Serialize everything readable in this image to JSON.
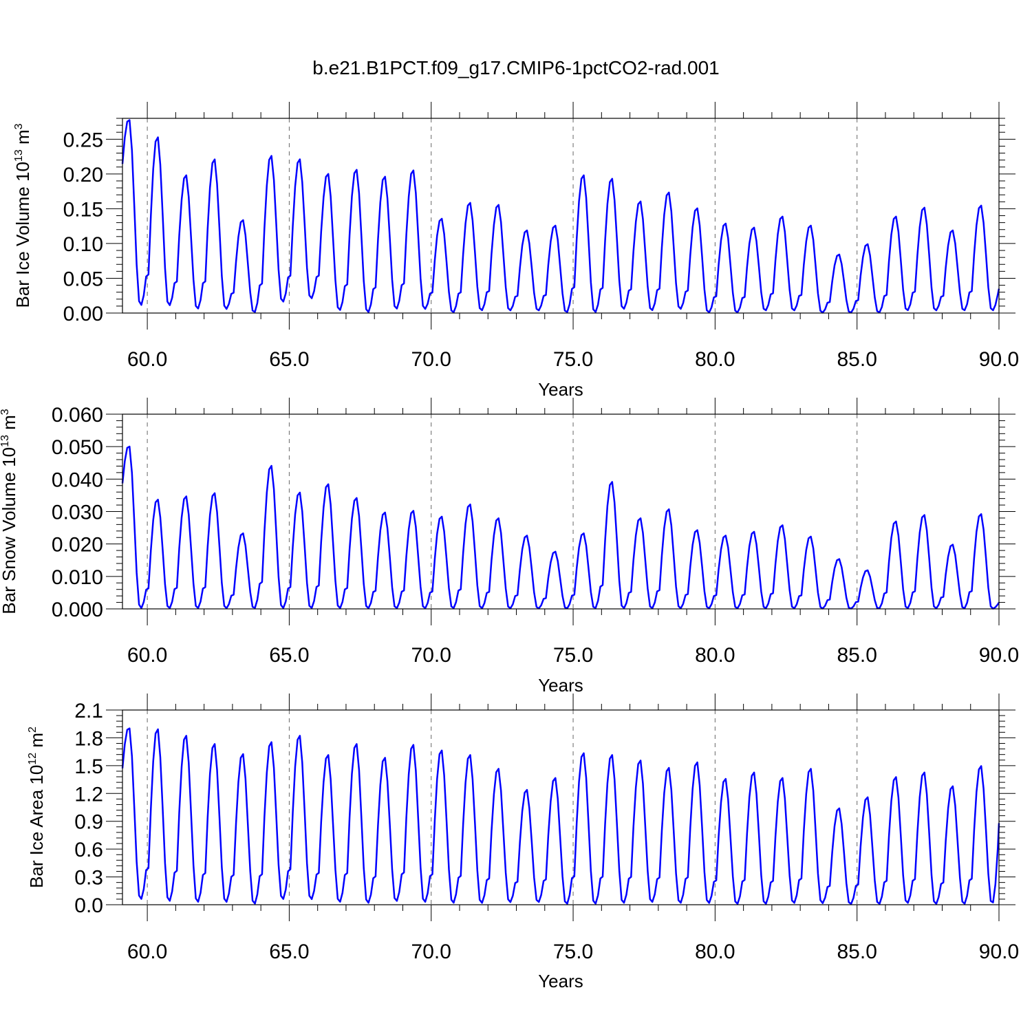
{
  "figure": {
    "title": "b.e21.B1PCT.f09_g17.CMIP6-1pctCO2-rad.001",
    "series_color": "#0000ff"
  },
  "chart_data": [
    {
      "type": "line",
      "ylabel": "Bar Ice Volume 10",
      "ylabel_exp": "13",
      "ylabel_unit": " m",
      "ylabel_unit_exp": "3",
      "xlabel": "Years",
      "xlim": [
        59.125,
        90.0
      ],
      "ylim": [
        0.0,
        0.28
      ],
      "yticks": [
        0.0,
        0.05,
        0.1,
        0.15,
        0.2,
        0.25
      ],
      "ytick_labels": [
        "0.00",
        "0.05",
        "0.10",
        "0.15",
        "0.20",
        "0.25"
      ],
      "xticks": [
        60,
        65,
        70,
        75,
        80,
        85,
        90
      ],
      "xtick_labels": [
        "60.0",
        "65.0",
        "70.0",
        "75.0",
        "80.0",
        "85.0",
        "90.0"
      ],
      "grid": "dashed vertical at major x ticks",
      "year_start": 59,
      "annual_peaks": [
        0.28,
        0.255,
        0.2,
        0.223,
        0.135,
        0.228,
        0.223,
        0.202,
        0.208,
        0.198,
        0.207,
        0.137,
        0.16,
        0.157,
        0.12,
        0.127,
        0.2,
        0.195,
        0.162,
        0.175,
        0.152,
        0.13,
        0.124,
        0.14,
        0.127,
        0.085,
        0.1,
        0.14,
        0.153,
        0.12,
        0.156
      ],
      "annual_minima": [
        0.01,
        0.01,
        0.005,
        0.005,
        0.0,
        0.015,
        0.02,
        0.003,
        0.0,
        0.005,
        0.005,
        0.0,
        0.003,
        0.003,
        0.003,
        0.0,
        0.0,
        0.005,
        0.003,
        0.005,
        0.0,
        0.0,
        0.003,
        0.003,
        0.0,
        0.0,
        0.0,
        0.003,
        0.003,
        0.003,
        0.003
      ],
      "end_value": 0.035
    },
    {
      "type": "line",
      "ylabel": "Bar Snow Volume 10",
      "ylabel_exp": "13",
      "ylabel_unit": " m",
      "ylabel_unit_exp": "3",
      "xlabel": "Years",
      "xlim": [
        59.125,
        90.0
      ],
      "ylim": [
        0.0,
        0.06
      ],
      "yticks": [
        0.0,
        0.01,
        0.02,
        0.03,
        0.04,
        0.05,
        0.06
      ],
      "ytick_labels": [
        "0.000",
        "0.010",
        "0.020",
        "0.030",
        "0.040",
        "0.050",
        "0.060"
      ],
      "xticks": [
        60,
        65,
        70,
        75,
        80,
        85,
        90
      ],
      "xtick_labels": [
        "60.0",
        "65.0",
        "70.0",
        "75.0",
        "80.0",
        "85.0",
        "90.0"
      ],
      "grid": "dashed vertical at major x ticks",
      "year_start": 59,
      "annual_peaks": [
        0.0505,
        0.034,
        0.035,
        0.036,
        0.0235,
        0.0445,
        0.0362,
        0.0388,
        0.0345,
        0.03,
        0.0305,
        0.0287,
        0.0325,
        0.0282,
        0.0228,
        0.0178,
        0.0235,
        0.0395,
        0.0282,
        0.031,
        0.0245,
        0.0228,
        0.024,
        0.026,
        0.0225,
        0.0155,
        0.012,
        0.0272,
        0.0292,
        0.02,
        0.0295
      ],
      "annual_minima": [
        0.0,
        0.0,
        0.0,
        0.0,
        0.0,
        0.0,
        0.0,
        0.0,
        0.0,
        0.0,
        0.0,
        0.0,
        0.0,
        0.0,
        0.0,
        0.0,
        0.0,
        0.0,
        0.0,
        0.0,
        0.0,
        0.0,
        0.0,
        0.0,
        0.0,
        0.0,
        0.0,
        0.0,
        0.0,
        0.0,
        0.0
      ],
      "end_value": 0.002
    },
    {
      "type": "line",
      "ylabel": "Bar Ice Area 10",
      "ylabel_exp": "12",
      "ylabel_unit": " m",
      "ylabel_unit_exp": "2",
      "xlabel": "Years",
      "xlim": [
        59.125,
        90.0
      ],
      "ylim": [
        0.0,
        2.1
      ],
      "yticks": [
        0.0,
        0.3,
        0.6,
        0.9,
        1.2,
        1.5,
        1.8,
        2.1
      ],
      "ytick_labels": [
        "0.0",
        "0.3",
        "0.6",
        "0.9",
        "1.2",
        "1.5",
        "1.8",
        "2.1"
      ],
      "xticks": [
        60,
        65,
        70,
        75,
        80,
        85,
        90
      ],
      "xtick_labels": [
        "60.0",
        "65.0",
        "70.0",
        "75.0",
        "80.0",
        "85.0",
        "90.0"
      ],
      "grid": "dashed vertical at major x ticks",
      "year_start": 59,
      "annual_peaks": [
        1.92,
        1.91,
        1.84,
        1.75,
        1.64,
        1.77,
        1.84,
        1.63,
        1.75,
        1.6,
        1.74,
        1.68,
        1.63,
        1.48,
        1.25,
        1.38,
        1.65,
        1.63,
        1.57,
        1.49,
        1.55,
        1.37,
        1.44,
        1.38,
        1.48,
        1.05,
        1.17,
        1.39,
        1.44,
        1.29,
        1.51
      ],
      "annual_minima": [
        0.05,
        0.03,
        0.02,
        0.02,
        0.0,
        0.05,
        0.05,
        0.02,
        0.01,
        0.03,
        0.02,
        0.01,
        0.01,
        0.02,
        0.02,
        0.0,
        0.0,
        0.01,
        0.02,
        0.01,
        0.01,
        0.0,
        0.0,
        0.01,
        0.01,
        0.0,
        0.0,
        0.01,
        0.0,
        0.0,
        0.0
      ],
      "end_value": 0.88
    }
  ]
}
